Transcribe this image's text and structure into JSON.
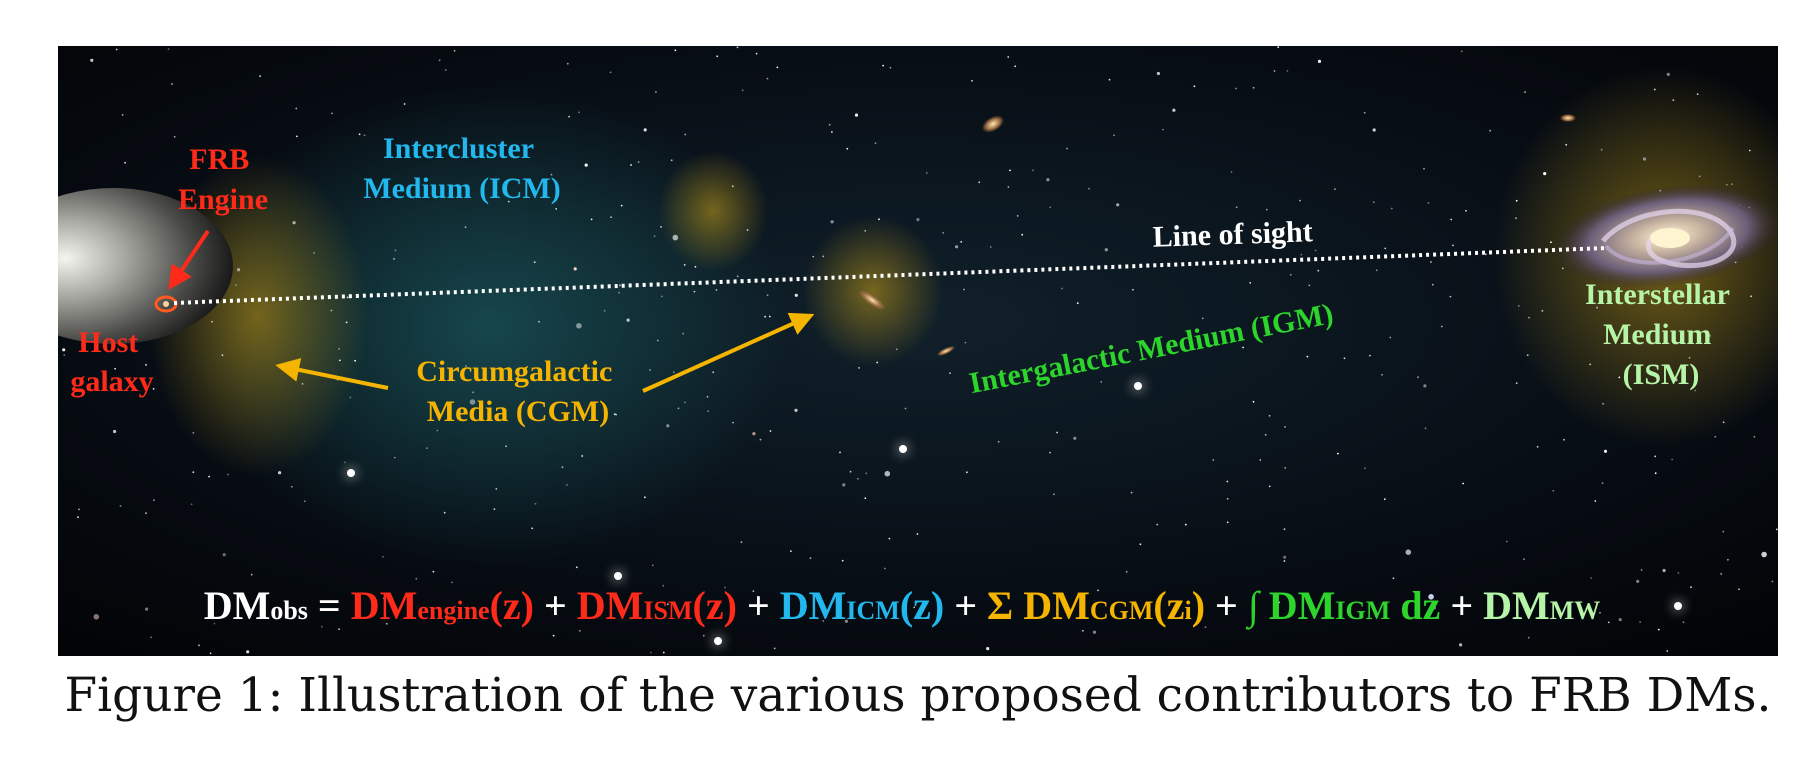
{
  "labels": {
    "frb_engine_line1": "FRB",
    "frb_engine_line2": "Engine",
    "host_galaxy_line1": "Host",
    "host_galaxy_line2": "galaxy",
    "icm_line1": "Intercluster",
    "icm_line2": "Medium (ICM)",
    "cgm_line1": "Circumgalactic",
    "cgm_line2": "Media (CGM)",
    "igm": "Intergalactic Medium (IGM)",
    "line_of_sight": "Line of sight",
    "ism_line1": "Interstellar",
    "ism_line2": "Medium",
    "ism_line3": "(ISM)"
  },
  "equation": {
    "dm": "DM",
    "obs_sub": "obs",
    "equals": " = ",
    "plus": " + ",
    "engine_sub": "engine",
    "engine_arg": "(z)",
    "ism_sub": "ISM",
    "ism_arg": "(z)",
    "icm_sub": "ICM",
    "icm_arg": "(z)",
    "sigma": "Σ ",
    "cgm_sub": "CGM",
    "cgm_arg_open": "(z",
    "cgm_arg_sub": "i",
    "cgm_arg_close": ")",
    "integral": "∫ ",
    "igm_sub": "IGM",
    "igm_tail": " dz",
    "mw_sub": "MW"
  },
  "colors": {
    "red": "#ff2a1a",
    "cyan": "#22b8ee",
    "yellow": "#f5b400",
    "green": "#2cd42c",
    "light_green": "#b6f5a8",
    "white": "#ffffff"
  },
  "caption": "Figure 1: Illustration of the various proposed contributors to FRB DMs."
}
